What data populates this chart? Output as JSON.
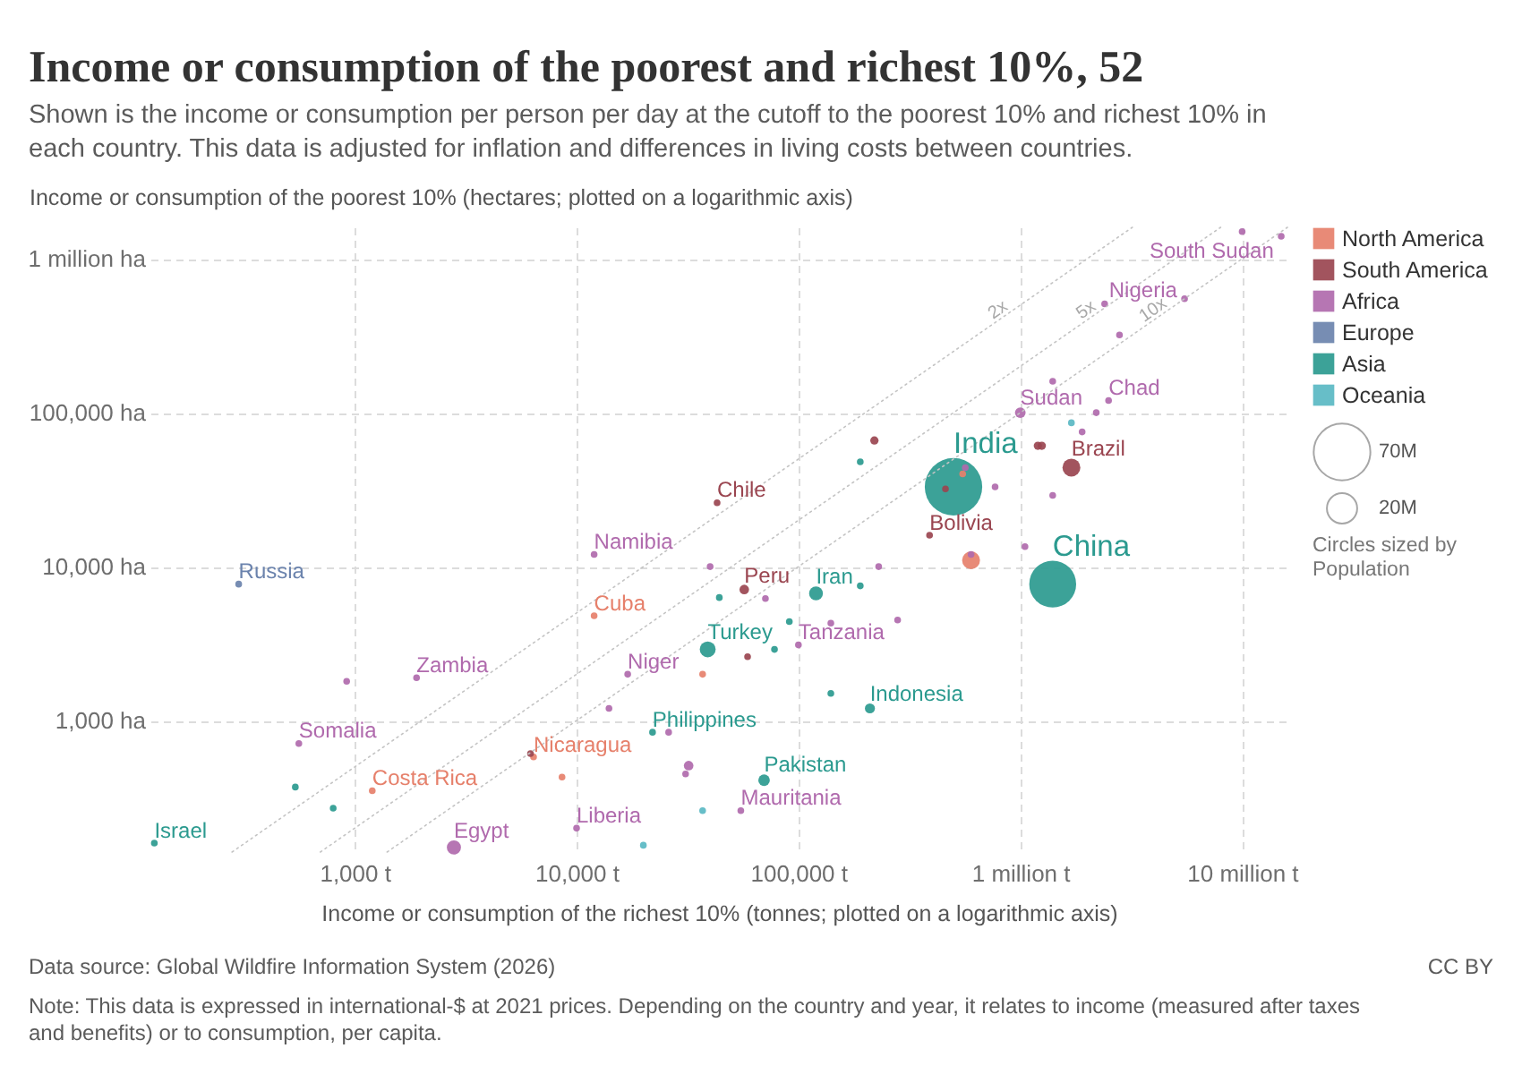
{
  "chart_data": {
    "type": "bubble",
    "title": "Income or consumption of the poorest and richest 10%, 52",
    "subtitle": "Shown is the income or consumption per person per day at the cutoff to the poorest 10% and richest 10% in each country. This data is adjusted for inflation and differences in living costs between countries.",
    "xlabel": "Income or consumption of the richest 10% (tonnes; plotted on a logarithmic axis)",
    "ylabel": "Income or consumption of the poorest 10% (hectares; plotted on a logarithmic axis)",
    "legend_title": "Circles sized by Population",
    "size_legend": [
      {
        "value": 70,
        "label": "70M"
      },
      {
        "value": 20,
        "label": "20M"
      }
    ],
    "xlim": [
      120,
      16000000
    ],
    "ylim": [
      140,
      1600000
    ],
    "xticks": [
      {
        "value": 1000,
        "label": "1,000 t"
      },
      {
        "value": 10000,
        "label": "10,000 t"
      },
      {
        "value": 100000,
        "label": "100,000 t"
      },
      {
        "value": 1000000,
        "label": "1 million t"
      },
      {
        "value": 10000000,
        "label": "10 million t"
      }
    ],
    "yticks": [
      {
        "value": 1000,
        "label": "1,000 ha"
      },
      {
        "value": 10000,
        "label": "10,000 ha"
      },
      {
        "value": 100000,
        "label": "100,000 ha"
      },
      {
        "value": 1000000,
        "label": "1 million ha"
      }
    ],
    "log": "xy",
    "grid": true,
    "legend": "right",
    "marker": "circle",
    "series": [
      {
        "name": "North America",
        "color": "#e6806b",
        "x": [
          12000,
          1200,
          6400,
          8600,
          37000,
          600000,
          550000
        ],
        "values": [
          4800,
          350,
          580,
          430,
          2000,
          11000,
          40000
        ],
        "sizes": [
          1,
          1,
          1,
          1,
          1,
          7,
          1
        ]
      },
      {
        "name": "South America",
        "color": "#9a4550",
        "x": [
          43000,
          57000,
          390000,
          1700000,
          59000,
          6200,
          220000,
          1200000,
          1250000,
          460000
        ],
        "values": [
          26000,
          7100,
          16000,
          44000,
          2600,
          610,
          66000,
          61000,
          61000,
          32000
        ],
        "sizes": [
          1,
          2,
          1,
          7,
          1,
          1,
          1.5,
          1.5,
          1.5,
          1
        ]
      },
      {
        "name": "Africa",
        "color": "#b06aad",
        "x": [
          12000,
          40000,
          71000,
          1900,
          920,
          17000,
          14000,
          26000,
          560,
          32000,
          31000,
          55000,
          10000,
          2800,
          230000,
          140000,
          280000,
          100000,
          15000000,
          10000000,
          5500000,
          2400000,
          2800000,
          1400000,
          1000000,
          2500000,
          2200000,
          1900000,
          565000,
          770000,
          1400000,
          1050000,
          600000
        ],
        "values": [
          12000,
          10000,
          6200,
          1900,
          1800,
          2000,
          1200,
          840,
          710,
          510,
          450,
          260,
          200,
          150,
          10000,
          4300,
          4500,
          3100,
          1400000,
          1500000,
          550000,
          510000,
          320000,
          160000,
          100000,
          120000,
          100000,
          75000,
          44000,
          33000,
          29000,
          13500,
          12000
        ],
        "sizes": [
          1,
          1,
          1,
          1,
          1,
          1,
          1,
          1,
          1,
          2,
          1,
          1,
          1,
          4.4,
          1,
          1,
          1,
          1,
          1,
          1,
          1,
          1,
          1,
          1,
          2.5,
          1,
          1,
          1,
          1,
          1,
          1,
          1,
          1
        ]
      },
      {
        "name": "Europe",
        "color": "#6b83ad",
        "x": [
          300
        ],
        "values": [
          7700
        ],
        "sizes": [
          1
        ]
      },
      {
        "name": "Asia",
        "color": "#2b9a8f",
        "x": [
          500000,
          1400000,
          39000,
          120000,
          210000,
          70000,
          22000,
          125,
          44000,
          190000,
          91000,
          78000,
          140000,
          540,
          800,
          190000
        ],
        "values": [
          33000,
          7700,
          2900,
          6700,
          1200,
          410,
          840,
          160,
          6300,
          7500,
          4400,
          2900,
          1500,
          370,
          270,
          48000
        ],
        "sizes": [
          72,
          48,
          5.5,
          4.2,
          2.2,
          2.9,
          1,
          1,
          1,
          1,
          1,
          1,
          1,
          1,
          1,
          1
        ]
      },
      {
        "name": "Oceania",
        "color": "#5ab8c3",
        "x": [
          1700000,
          37000,
          20000
        ],
        "values": [
          86000,
          260,
          155
        ],
        "sizes": [
          1,
          1,
          1
        ]
      },
      {
        "name": "2x",
        "type": "line",
        "color": "#c4c4c4",
        "line_style": "dotted",
        "marker": "none",
        "x": [
          280,
          3200000
        ],
        "values": [
          140,
          1600000
        ]
      },
      {
        "name": "5x",
        "type": "line",
        "color": "#c4c4c4",
        "line_style": "dotted",
        "marker": "none",
        "x": [
          700,
          8000000
        ],
        "values": [
          140,
          1600000
        ]
      },
      {
        "name": "10x",
        "type": "line",
        "color": "#c4c4c4",
        "line_style": "dotted",
        "marker": "none",
        "x": [
          1400,
          16000000
        ],
        "values": [
          140,
          1600000
        ]
      }
    ],
    "annotations": [
      {
        "text": "Chile",
        "x": 43000,
        "y": 26000
      },
      {
        "text": "Namibia",
        "x": 12000,
        "y": 12000
      },
      {
        "text": "Russia",
        "x": 300,
        "y": 7700
      },
      {
        "text": "Peru",
        "x": 57000,
        "y": 7100
      },
      {
        "text": "Cuba",
        "x": 12000,
        "y": 4800
      },
      {
        "text": "Turkey",
        "x": 39000,
        "y": 2900
      },
      {
        "text": "Zambia",
        "x": 1900,
        "y": 1900
      },
      {
        "text": "Niger",
        "x": 17000,
        "y": 2000
      },
      {
        "text": "Philippines",
        "x": 22000,
        "y": 840
      },
      {
        "text": "Somalia",
        "x": 560,
        "y": 710
      },
      {
        "text": "Nicaragua",
        "x": 6400,
        "y": 580
      },
      {
        "text": "Costa Rica",
        "x": 1200,
        "y": 350
      },
      {
        "text": "Liberia",
        "x": 10000,
        "y": 200
      },
      {
        "text": "Egypt",
        "x": 2800,
        "y": 150
      },
      {
        "text": "Israel",
        "x": 125,
        "y": 160
      },
      {
        "text": "Iran",
        "x": 120000,
        "y": 6700
      },
      {
        "text": "Tanzania",
        "x": 100000,
        "y": 3100
      },
      {
        "text": "Indonesia",
        "x": 210000,
        "y": 1200
      },
      {
        "text": "Pakistan",
        "x": 70000,
        "y": 410
      },
      {
        "text": "Mauritania",
        "x": 55000,
        "y": 260
      },
      {
        "text": "India",
        "x": 500000,
        "y": 33000
      },
      {
        "text": "China",
        "x": 1400000,
        "y": 7700
      },
      {
        "text": "Bolivia",
        "x": 390000,
        "y": 16000
      },
      {
        "text": "Brazil",
        "x": 1700000,
        "y": 44000
      },
      {
        "text": "Sudan",
        "x": 1000000,
        "y": 100000
      },
      {
        "text": "Chad",
        "x": 2500000,
        "y": 120000
      },
      {
        "text": "Nigeria",
        "x": 5500000,
        "y": 550000
      },
      {
        "text": "South Sudan",
        "x": 15000000,
        "y": 1400000
      },
      "Data source: Global Wildfire Information System (2026)",
      "CC BY",
      "Note: This data is expressed in international-$ at 2021 prices. Depending on the country and year, it relates to income (measured after taxes and benefits) or to consumption, per capita."
    ]
  }
}
